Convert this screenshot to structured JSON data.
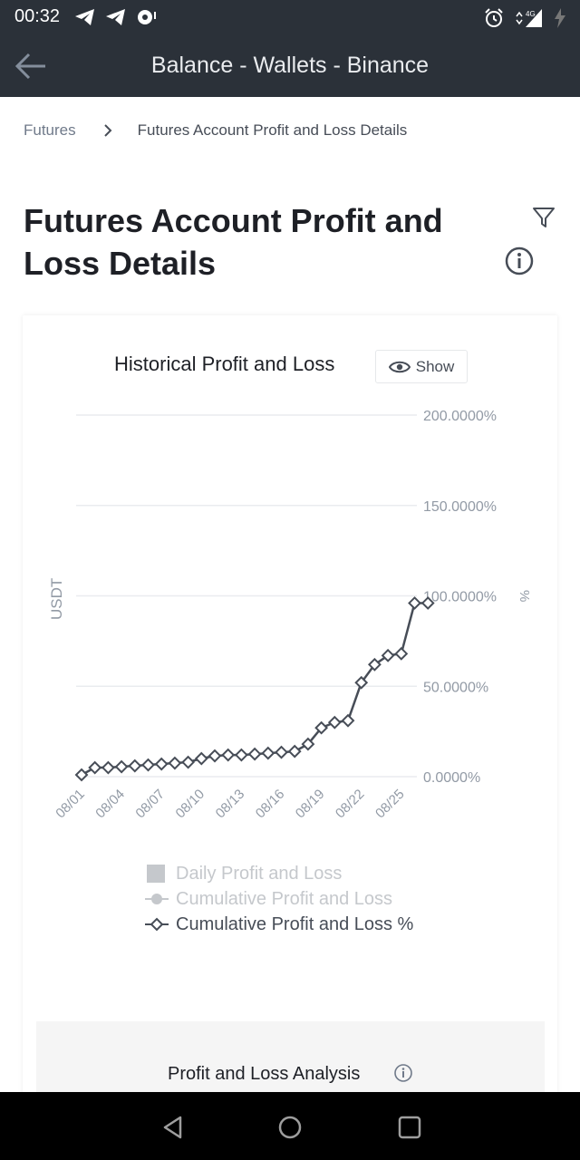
{
  "status_bar": {
    "time": "00:32",
    "left_icons": [
      "telegram-icon",
      "telegram-icon",
      "notification-icon"
    ],
    "right_icons": [
      "alarm-icon",
      "signal-4g-icon",
      "battery-charging-icon"
    ],
    "network_label": "4G"
  },
  "app_bar": {
    "title": "Balance - Wallets - Binance",
    "back_icon": "arrow-left-icon"
  },
  "breadcrumb": {
    "root": "Futures",
    "current": "Futures Account Profit and Loss Details"
  },
  "page": {
    "title": "Futures Account Profit and Loss Details"
  },
  "chart_header": {
    "title": "Historical Profit and Loss",
    "show_label": "Show"
  },
  "chart_data": {
    "type": "line",
    "title": "Historical Profit and Loss",
    "ylabel_left": "USDT",
    "ylabel_right": "%",
    "y_ticks": [
      "200.0000%",
      "150.0000%",
      "100.0000%",
      "50.0000%",
      "0.0000%"
    ],
    "ylim": [
      0,
      200
    ],
    "x_ticks": [
      "08/01",
      "08/04",
      "08/07",
      "08/10",
      "08/13",
      "08/16",
      "08/19",
      "08/22",
      "08/25"
    ],
    "x": [
      "08/01",
      "08/02",
      "08/03",
      "08/04",
      "08/05",
      "08/06",
      "08/07",
      "08/08",
      "08/09",
      "08/10",
      "08/11",
      "08/12",
      "08/13",
      "08/14",
      "08/15",
      "08/16",
      "08/17",
      "08/18",
      "08/19",
      "08/20",
      "08/21",
      "08/22",
      "08/23",
      "08/24",
      "08/25",
      "08/26",
      "08/27"
    ],
    "series": [
      {
        "name": "Cumulative Profit and Loss %",
        "values": [
          1,
          5,
          5,
          5.5,
          6,
          6.5,
          7,
          7.5,
          8,
          10,
          11.5,
          12,
          12,
          12.5,
          13,
          13.5,
          14,
          18,
          27,
          30,
          31,
          52,
          62,
          67,
          68,
          96,
          96
        ],
        "color": "#474d57",
        "marker": "diamond"
      }
    ],
    "legend": [
      {
        "label": "Daily Profit and Loss",
        "enabled": false,
        "marker": "square"
      },
      {
        "label": "Cumulative Profit and Loss",
        "enabled": false,
        "marker": "circle-line"
      },
      {
        "label": "Cumulative Profit and Loss %",
        "enabled": true,
        "marker": "diamond-line"
      }
    ],
    "grid": true,
    "legend_placement": "bottom"
  },
  "analysis": {
    "title": "Profit and Loss Analysis"
  },
  "nav_bar": {
    "buttons": [
      "back-triangle-icon",
      "home-circle-icon",
      "recents-square-icon"
    ]
  },
  "colors": {
    "header_bg": "#2b3139",
    "line": "#474d57",
    "grid": "#eaecef",
    "disabled_legend": "#c5c8cc",
    "muted_text": "#707a8a"
  }
}
